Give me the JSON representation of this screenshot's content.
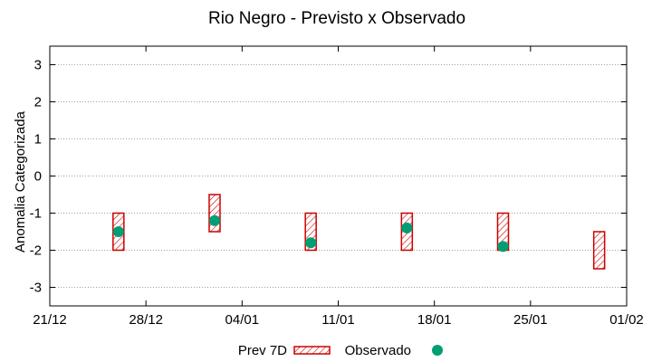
{
  "chart_data": {
    "type": "range-bar-with-points",
    "title": "Rio Negro - Previsto x Observado",
    "xlabel": "",
    "ylabel": "Anomalia Categorizada",
    "ylim": [
      -3.5,
      3.5
    ],
    "yticks": [
      3,
      2,
      1,
      0,
      -1,
      -2,
      -3
    ],
    "xlim_days": [
      0,
      42
    ],
    "xticks": [
      {
        "day": 0,
        "label": "21/12"
      },
      {
        "day": 7,
        "label": "28/12"
      },
      {
        "day": 14,
        "label": "04/01"
      },
      {
        "day": 21,
        "label": "11/01"
      },
      {
        "day": 28,
        "label": "18/01"
      },
      {
        "day": 35,
        "label": "25/01"
      },
      {
        "day": 42,
        "label": "01/02"
      }
    ],
    "grid": true,
    "legend_position": "bottom-center",
    "series": [
      {
        "name": "Prev 7D",
        "kind": "range",
        "color": "#cc0000",
        "points": [
          {
            "day": 5,
            "low": -2.0,
            "high": -1.0
          },
          {
            "day": 12,
            "low": -1.5,
            "high": -0.5
          },
          {
            "day": 19,
            "low": -2.0,
            "high": -1.0
          },
          {
            "day": 26,
            "low": -2.0,
            "high": -1.0
          },
          {
            "day": 33,
            "low": -2.0,
            "high": -1.0
          },
          {
            "day": 40,
            "low": -2.5,
            "high": -1.5
          }
        ]
      },
      {
        "name": "Observado",
        "kind": "point",
        "color": "#009e73",
        "points": [
          {
            "day": 5,
            "value": -1.5
          },
          {
            "day": 12,
            "value": -1.2
          },
          {
            "day": 19,
            "value": -1.8
          },
          {
            "day": 26,
            "value": -1.4
          },
          {
            "day": 33,
            "value": -1.9
          }
        ]
      }
    ]
  }
}
